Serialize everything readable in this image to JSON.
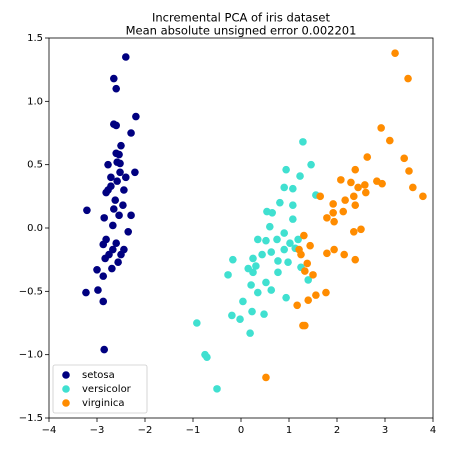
{
  "chart_data": {
    "type": "scatter",
    "title": "Incremental PCA of iris dataset",
    "subtitle": "Mean absolute unsigned error 0.002201",
    "xlim": [
      -4,
      4
    ],
    "xticks": [
      {
        "value": -4,
        "label": "−4"
      },
      {
        "value": -3,
        "label": "−3"
      },
      {
        "value": -2,
        "label": "−2"
      },
      {
        "value": -1,
        "label": "−1"
      },
      0,
      1,
      2,
      3,
      4
    ],
    "ylim": [
      -1.5,
      1.5
    ],
    "yticks": [
      {
        "value": -1.5,
        "label": "−1.5"
      },
      {
        "value": -1,
        "label": "−1.0"
      },
      {
        "value": -0.5,
        "label": "−0.5"
      },
      {
        "value": 0,
        "label": "0.0"
      },
      0.5,
      {
        "value": 1,
        "label": "1.0"
      },
      1.5
    ],
    "legend": "lower left",
    "series": [
      {
        "name": "setosa",
        "color": "#000080",
        "x": [
          -2.4,
          -2.65,
          -2.6,
          -2.19,
          -2.65,
          -2.6,
          -2.29,
          -2.5,
          -2.6,
          -2.54,
          -2.58,
          -2.52,
          -2.77,
          -2.52,
          -2.21,
          -2.4,
          -2.71,
          -2.58,
          -2.71,
          -2.77,
          -2.81,
          -2.44,
          -2.62,
          -3.21,
          -2.46,
          -2.65,
          -2.85,
          -2.29,
          -2.54,
          -2.67,
          -2.35,
          -2.81,
          -2.6,
          -2.87,
          -2.67,
          -2.44,
          -2.5,
          -2.75,
          -2.83,
          -2.56,
          -2.69,
          -3.0,
          -2.87,
          -2.98,
          -3.23,
          -2.87,
          -2.85
        ],
        "y": [
          1.35,
          1.18,
          1.1,
          0.88,
          0.82,
          0.81,
          0.75,
          0.65,
          0.59,
          0.58,
          0.52,
          0.51,
          0.5,
          0.44,
          0.44,
          0.4,
          0.4,
          0.37,
          0.33,
          0.3,
          0.28,
          0.3,
          0.22,
          0.14,
          0.18,
          0.15,
          0.08,
          0.1,
          0.1,
          0.02,
          -0.03,
          -0.09,
          -0.12,
          -0.13,
          -0.17,
          -0.17,
          -0.21,
          -0.21,
          -0.24,
          -0.27,
          -0.32,
          -0.33,
          -0.38,
          -0.49,
          -0.51,
          -0.58,
          -0.96
        ]
      },
      {
        "name": "versicolor",
        "color": "#40e0d0",
        "x": [
          1.29,
          0.94,
          1.46,
          1.23,
          0.9,
          1.08,
          1.56,
          0.81,
          1.08,
          0.65,
          0.54,
          1.08,
          0.6,
          0.9,
          0.35,
          0.52,
          1.02,
          0.75,
          1.19,
          1.13,
          0.63,
          0.9,
          -0.17,
          0.25,
          0.44,
          0.77,
          0.98,
          1.25,
          0.31,
          0.15,
          0.25,
          -0.27,
          0.77,
          1.4,
          0.52,
          0.21,
          0.63,
          0.94,
          0.35,
          0.04,
          0.23,
          0.48,
          -0.19,
          -0.02,
          -0.92,
          0.19,
          -0.75,
          -0.71,
          -0.5
        ],
        "y": [
          0.68,
          0.46,
          0.5,
          0.41,
          0.32,
          0.31,
          0.26,
          0.2,
          0.18,
          0.12,
          0.13,
          0.07,
          0.01,
          -0.04,
          -0.09,
          -0.1,
          -0.12,
          -0.09,
          -0.09,
          -0.16,
          -0.19,
          -0.17,
          -0.25,
          -0.24,
          -0.21,
          -0.26,
          -0.27,
          -0.31,
          -0.3,
          -0.32,
          -0.35,
          -0.37,
          -0.35,
          -0.41,
          -0.43,
          -0.45,
          -0.49,
          -0.55,
          -0.51,
          -0.58,
          -0.66,
          -0.68,
          -0.69,
          -0.72,
          -0.75,
          -0.83,
          -1.0,
          -1.02,
          -1.27
        ]
      },
      {
        "name": "virginica",
        "color": "#ff8c00",
        "x": [
          3.21,
          3.48,
          2.92,
          3.1,
          2.63,
          3.4,
          3.5,
          2.38,
          2.08,
          2.29,
          2.58,
          2.83,
          2.94,
          2.44,
          2.6,
          3.58,
          3.79,
          1.65,
          2.35,
          2.17,
          1.92,
          2.38,
          1.92,
          2.13,
          1.79,
          1.94,
          2.35,
          1.31,
          2.5,
          1.44,
          1.94,
          1.79,
          2.15,
          2.38,
          1.21,
          1.25,
          1.38,
          1.5,
          1.33,
          1.77,
          1.56,
          1.4,
          1.17,
          1.29,
          1.33,
          0.52
        ],
        "y": [
          1.38,
          1.18,
          0.79,
          0.69,
          0.56,
          0.55,
          0.45,
          0.46,
          0.38,
          0.36,
          0.34,
          0.37,
          0.35,
          0.32,
          0.28,
          0.32,
          0.25,
          0.25,
          0.25,
          0.22,
          0.19,
          0.18,
          0.12,
          0.13,
          0.08,
          0.05,
          -0.03,
          -0.06,
          -0.01,
          -0.14,
          -0.17,
          -0.2,
          -0.21,
          -0.25,
          -0.17,
          -0.21,
          -0.28,
          -0.37,
          -0.34,
          -0.51,
          -0.53,
          -0.57,
          -0.61,
          -0.77,
          -0.77,
          -1.18
        ]
      }
    ]
  }
}
